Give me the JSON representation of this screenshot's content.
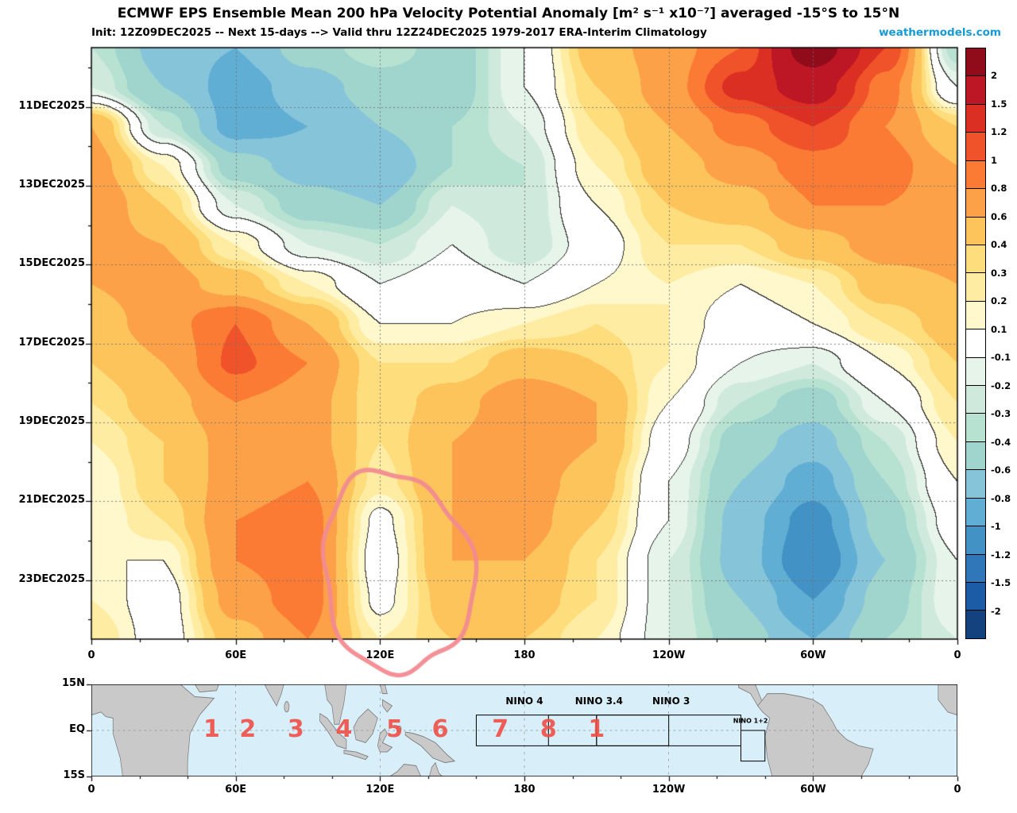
{
  "header": {
    "brand": "weathermodels.com",
    "brand_color": "#169bd5"
  },
  "chart_data": {
    "type": "heatmap",
    "title": "ECMWF EPS Ensemble Mean 200 hPa Velocity Potential Anomaly [m² s⁻¹ x10⁻⁷] averaged -15°S to 15°N",
    "subtitle": "Init: 12Z09DEC2025 -- Next 15-days --> Valid thru 12Z24DEC2025 1979-2017 ERA-Interim Climatology",
    "x_axis": {
      "tick_lons": [
        0,
        60,
        120,
        180,
        240,
        300,
        360
      ],
      "tick_labels": [
        "0",
        "60E",
        "120E",
        "180",
        "120W",
        "60W",
        "0"
      ],
      "range": [
        0,
        360
      ],
      "grid_line_lons": [
        60,
        120,
        180,
        240,
        300
      ]
    },
    "y_axis": {
      "tick_times": [
        11,
        13,
        15,
        17,
        19,
        21,
        23
      ],
      "tick_labels": [
        "11DEC2025",
        "13DEC2025",
        "15DEC2025",
        "17DEC2025",
        "19DEC2025",
        "21DEC2025",
        "23DEC2025"
      ],
      "range": [
        9.5,
        24.5
      ]
    },
    "grid": {
      "lon_start": 0,
      "lon_step": 30,
      "time_start": 9.5,
      "time_step": 1
    },
    "values": [
      [
        -0.3,
        -0.7,
        -0.8,
        -0.5,
        -0.3,
        -0.5,
        -0.1,
        0.5,
        0.7,
        1.0,
        2.3,
        1.2,
        -0.4
      ],
      [
        -0.2,
        -0.6,
        -0.9,
        -0.7,
        -0.5,
        -0.5,
        -0.1,
        0.4,
        0.7,
        1.3,
        1.7,
        0.9,
        -0.1
      ],
      [
        0.6,
        -0.3,
        -0.9,
        -0.8,
        -0.6,
        -0.4,
        -0.2,
        0.3,
        0.6,
        0.9,
        1.2,
        0.8,
        0.4
      ],
      [
        0.7,
        0.2,
        -0.5,
        -0.7,
        -0.8,
        -0.4,
        -0.3,
        0.2,
        0.5,
        0.7,
        0.9,
        0.9,
        0.6
      ],
      [
        0.8,
        0.4,
        -0.2,
        -0.5,
        -0.6,
        -0.2,
        -0.3,
        0.1,
        0.4,
        0.5,
        0.8,
        0.8,
        0.7
      ],
      [
        0.7,
        0.6,
        0.2,
        -0.2,
        -0.3,
        -0.1,
        -0.3,
        0.0,
        0.3,
        0.3,
        0.5,
        0.7,
        0.7
      ],
      [
        0.6,
        0.7,
        0.5,
        0.2,
        -0.1,
        0.0,
        -0.1,
        0.1,
        0.2,
        0.1,
        0.2,
        0.5,
        0.6
      ],
      [
        0.5,
        0.7,
        1.0,
        0.6,
        0.1,
        0.1,
        0.2,
        0.3,
        0.2,
        0.0,
        0.1,
        0.3,
        0.5
      ],
      [
        0.4,
        0.6,
        1.05,
        0.8,
        0.3,
        0.3,
        0.5,
        0.4,
        0.2,
        -0.1,
        -0.2,
        0.1,
        0.4
      ],
      [
        0.3,
        0.5,
        0.8,
        0.7,
        0.3,
        0.5,
        0.8,
        0.6,
        0.1,
        -0.3,
        -0.5,
        -0.1,
        0.3
      ],
      [
        0.2,
        0.4,
        0.7,
        0.7,
        0.3,
        0.6,
        0.8,
        0.6,
        0.0,
        -0.5,
        -0.7,
        -0.3,
        0.2
      ],
      [
        0.1,
        0.4,
        0.7,
        0.8,
        0.25,
        0.6,
        0.7,
        0.5,
        -0.1,
        -0.6,
        -0.9,
        -0.4,
        0.1
      ],
      [
        0.1,
        0.3,
        0.8,
        0.9,
        0.05,
        0.6,
        0.7,
        0.4,
        -0.1,
        -0.7,
        -1.1,
        -0.5,
        0.0
      ],
      [
        0.1,
        0.1,
        0.8,
        0.9,
        0.0,
        0.6,
        0.6,
        0.3,
        -0.2,
        -0.7,
        -1.2,
        -0.6,
        -0.1
      ],
      [
        0.2,
        0.0,
        0.7,
        0.9,
        0.05,
        0.5,
        0.5,
        0.3,
        -0.2,
        -0.6,
        -1.0,
        -0.5,
        -0.1
      ],
      [
        0.3,
        0.0,
        0.5,
        0.8,
        0.2,
        0.4,
        0.4,
        0.2,
        -0.2,
        -0.5,
        -0.8,
        -0.4,
        -0.2
      ]
    ],
    "levels": [
      -2,
      -1.5,
      -1.2,
      -1,
      -0.8,
      -0.6,
      -0.4,
      -0.3,
      -0.2,
      -0.1,
      0.1,
      0.2,
      0.3,
      0.4,
      0.6,
      0.8,
      1,
      1.2,
      1.5,
      2
    ],
    "colors": [
      "#14427e",
      "#1c5ba6",
      "#2f77b8",
      "#4292c6",
      "#61aed4",
      "#86c4da",
      "#a0d5cd",
      "#b7e2d2",
      "#cfeadc",
      "#e6f4ea",
      "#ffffff",
      "#fff8cc",
      "#feeca2",
      "#fedd7c",
      "#fdc45c",
      "#fda148",
      "#fb7b35",
      "#f05329",
      "#dc2f24",
      "#bd1726",
      "#900c1b"
    ],
    "zero_contour_color": "#2e2e2e",
    "grid_on": true,
    "legend_position": "right",
    "annotation": {
      "type": "ellipse",
      "lon": 127,
      "time": 22.8,
      "lon_radius": 31,
      "time_radius": 2.55,
      "color": "#f28b91"
    }
  },
  "map": {
    "y_tick_labels": [
      "15N",
      "EQ",
      "15S"
    ],
    "y_tick_lats": [
      15,
      0,
      -15
    ],
    "x_tick_lons": [
      0,
      60,
      120,
      180,
      240,
      300,
      360
    ],
    "x_tick_labels": [
      "0",
      "60E",
      "120E",
      "180",
      "120W",
      "60W",
      "0"
    ],
    "nino_regions": [
      {
        "label": "NINO 4",
        "lon1": 160,
        "lon2": 210,
        "lat1": 5,
        "lat2": -5,
        "label_lon": 180,
        "label_lat": 9.5,
        "small": false
      },
      {
        "label": "NINO 3.4",
        "lon1": 190,
        "lon2": 240,
        "lat1": 5,
        "lat2": -5,
        "label_lon": 211,
        "label_lat": 9.5,
        "small": false
      },
      {
        "label": "NINO 3",
        "lon1": 210,
        "lon2": 270,
        "lat1": 5,
        "lat2": -5,
        "label_lon": 241,
        "label_lat": 9.5,
        "small": false
      },
      {
        "label": "NINO 1+2",
        "lon1": 270,
        "lon2": 280,
        "lat1": 0,
        "lat2": -10,
        "label_lon": 274,
        "label_lat": 3.2,
        "small": true
      }
    ],
    "phase_numbers": [
      {
        "label": "1",
        "lon": 50
      },
      {
        "label": "2",
        "lon": 65
      },
      {
        "label": "3",
        "lon": 85
      },
      {
        "label": "4",
        "lon": 105
      },
      {
        "label": "5",
        "lon": 126
      },
      {
        "label": "6",
        "lon": 145
      },
      {
        "label": "7",
        "lon": 170
      },
      {
        "label": "8",
        "lon": 190
      },
      {
        "label": "1",
        "lon": 210
      }
    ],
    "phase_color": "#ef4b42",
    "ocean_color": "#d8eef8",
    "land_color": "#c9c9c9"
  }
}
